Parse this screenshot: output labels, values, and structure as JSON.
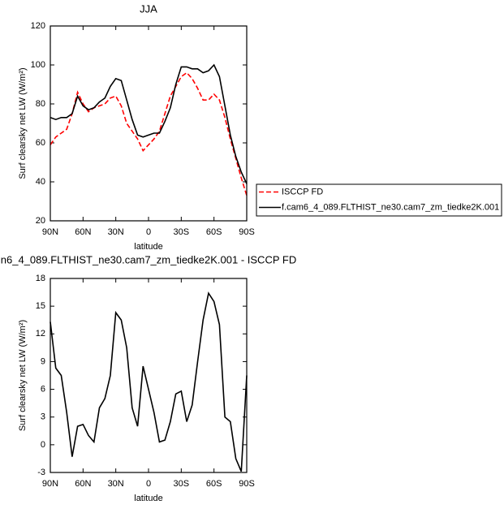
{
  "chart_data": [
    {
      "type": "line",
      "title": "JJA",
      "xlabel": "latitude",
      "ylabel": "Surf clearsky net LW (W/m²)",
      "x": [
        90,
        85,
        80,
        75,
        70,
        65,
        60,
        55,
        50,
        45,
        40,
        35,
        30,
        25,
        20,
        15,
        10,
        5,
        0,
        -5,
        -10,
        -15,
        -20,
        -25,
        -30,
        -35,
        -40,
        -45,
        -50,
        -55,
        -60,
        -65,
        -70,
        -75,
        -80,
        -85,
        -90
      ],
      "series": [
        {
          "name": "ISCCP FD",
          "color": "#ff0000",
          "linestyle": "dashed",
          "values": [
            59,
            63,
            65,
            67,
            75,
            86,
            80,
            76,
            78,
            79,
            80,
            83,
            84,
            79,
            70,
            66,
            62,
            56,
            59,
            62,
            66,
            75,
            84,
            89,
            94,
            96,
            93,
            88,
            82,
            82,
            85,
            82,
            73,
            62,
            52,
            42,
            33
          ]
        },
        {
          "name": "f.cam6_4_089.FLTHIST_ne30.cam7_zm_tiedke2K.001",
          "color": "#000000",
          "linestyle": "solid",
          "values": [
            73,
            72,
            73,
            73,
            75,
            84,
            79,
            77,
            78,
            81,
            83,
            89,
            93,
            92,
            82,
            72,
            64,
            63,
            64,
            65,
            65,
            71,
            78,
            90,
            99,
            99,
            98,
            98,
            96,
            97,
            100,
            94,
            79,
            64,
            53,
            45,
            39
          ]
        }
      ],
      "xlim": [
        90,
        -90
      ],
      "xticks": [
        {
          "value": 90,
          "label": "90N"
        },
        {
          "value": 60,
          "label": "60N"
        },
        {
          "value": 30,
          "label": "30N"
        },
        0,
        {
          "value": -30,
          "label": "30S"
        },
        {
          "value": -60,
          "label": "60S"
        },
        {
          "value": -90,
          "label": "90S"
        }
      ],
      "ylim": [
        20,
        120
      ],
      "yticks": [
        20,
        40,
        60,
        80,
        100,
        120
      ],
      "legend": "right"
    },
    {
      "type": "line",
      "title": "n6_4_089.FLTHIST_ne30.cam7_zm_tiedke2K.001 - ISCCP FD",
      "xlabel": "latitude",
      "ylabel": "Surf clearsky net LW (W/m²)",
      "x": [
        90,
        85,
        80,
        75,
        70,
        65,
        60,
        55,
        50,
        45,
        40,
        35,
        30,
        25,
        20,
        15,
        10,
        5,
        0,
        -5,
        -10,
        -15,
        -20,
        -25,
        -30,
        -35,
        -40,
        -45,
        -50,
        -55,
        -60,
        -65,
        -70,
        -75,
        -80,
        -85,
        -90
      ],
      "series": [
        {
          "color": "#000000",
          "linestyle": "solid",
          "values": [
            13.3,
            8.3,
            7.5,
            3.5,
            -1.3,
            2,
            2.2,
            1,
            0.3,
            4,
            5,
            7.5,
            14.3,
            13.5,
            10.5,
            4,
            2,
            8.5,
            6,
            3.5,
            0.3,
            0.5,
            2.5,
            5.5,
            5.8,
            2.5,
            4.3,
            9,
            13.5,
            16.4,
            15.5,
            13,
            3,
            2.5,
            -1.5,
            -2.9,
            7.5
          ]
        }
      ],
      "xlim": [
        90,
        -90
      ],
      "xticks": [
        {
          "value": 90,
          "label": "90N"
        },
        {
          "value": 60,
          "label": "60N"
        },
        {
          "value": 30,
          "label": "30N"
        },
        0,
        {
          "value": -30,
          "label": "30S"
        },
        {
          "value": -60,
          "label": "60S"
        },
        {
          "value": -90,
          "label": "90S"
        }
      ],
      "ylim": [
        -3,
        18
      ],
      "yticks": [
        -3,
        0,
        3,
        6,
        9,
        12,
        15,
        18
      ]
    }
  ]
}
